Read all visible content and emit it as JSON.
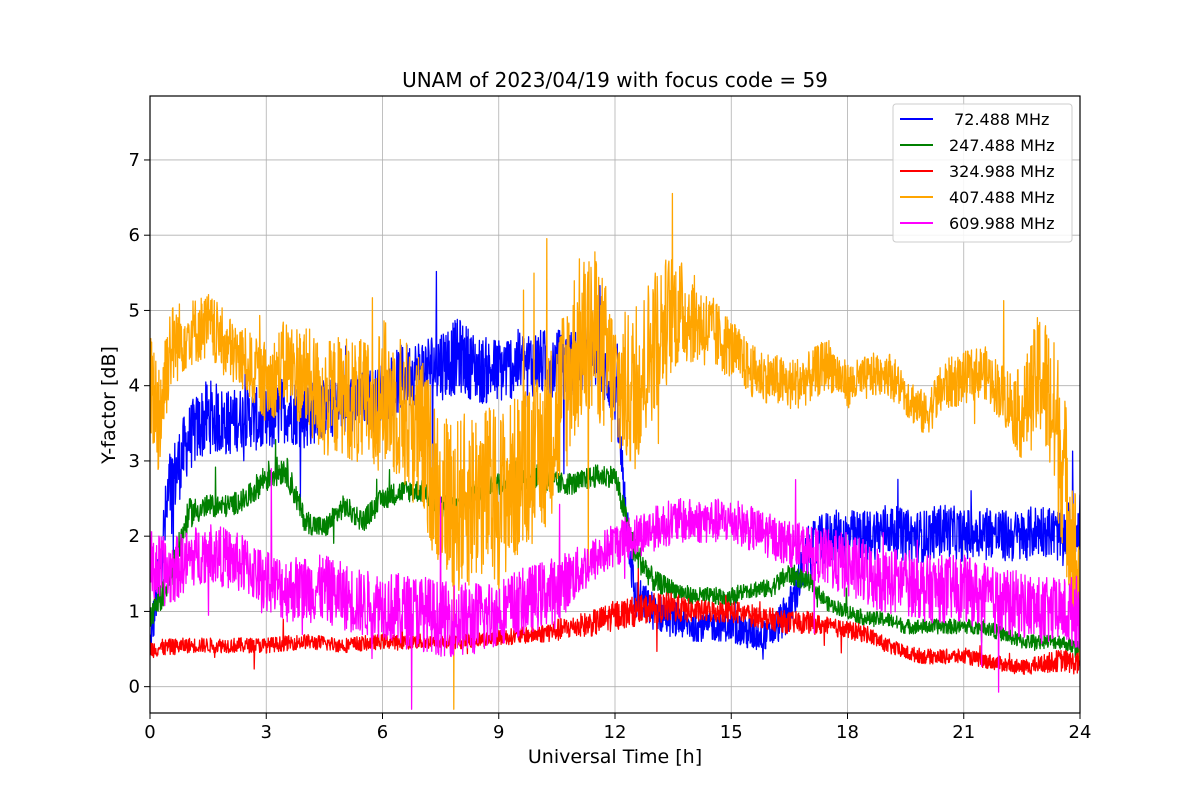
{
  "chart_data": {
    "type": "line",
    "title": "UNAM of 2023/04/19 with focus code = 59",
    "xlabel": "Universal Time [h]",
    "ylabel": "Y-factor [dB]",
    "xlim": [
      0,
      24
    ],
    "ylim": [
      -0.35,
      7.85
    ],
    "xticks": [
      0,
      3,
      6,
      9,
      12,
      15,
      18,
      21,
      24
    ],
    "yticks": [
      0,
      1,
      2,
      3,
      4,
      5,
      6,
      7
    ],
    "grid": true,
    "legend_position": "top-right",
    "series": [
      {
        "name": " 72.488 MHz",
        "color": "#0000ff",
        "x": [
          0,
          0.25,
          0.5,
          1,
          1.5,
          2,
          2.5,
          3,
          3.5,
          4,
          4.5,
          5,
          5.5,
          6,
          6.5,
          7,
          7.5,
          8,
          8.5,
          9,
          9.5,
          10,
          10.5,
          11,
          11.5,
          12,
          12.5,
          13,
          13.5,
          14,
          14.5,
          15,
          15.5,
          16,
          16.5,
          17,
          17.5,
          18,
          18.5,
          19,
          19.5,
          20,
          20.5,
          21,
          21.5,
          22,
          22.5,
          23,
          23.5,
          24
        ],
        "y": [
          0.5,
          1.6,
          2.6,
          3.3,
          3.6,
          3.5,
          3.6,
          3.5,
          3.7,
          3.6,
          3.7,
          3.7,
          3.8,
          3.9,
          4.1,
          4.2,
          4.3,
          4.4,
          4.2,
          4.2,
          4.3,
          4.3,
          4.3,
          4.3,
          4.4,
          3.9,
          1.2,
          1.0,
          0.9,
          0.8,
          0.8,
          0.8,
          0.7,
          0.7,
          1.0,
          1.8,
          2.0,
          2.0,
          2.0,
          2.1,
          2.0,
          2.0,
          2.1,
          2.0,
          2.1,
          2.0,
          2.0,
          2.1,
          2.0,
          2.2
        ],
        "amp": [
          0.25,
          0.45,
          0.55,
          0.45,
          0.5,
          0.45,
          0.4,
          0.45,
          0.45,
          0.45,
          0.4,
          0.4,
          0.4,
          0.4,
          0.45,
          0.45,
          0.5,
          0.5,
          0.45,
          0.45,
          0.45,
          0.45,
          0.45,
          0.45,
          0.45,
          0.4,
          0.3,
          0.25,
          0.25,
          0.2,
          0.2,
          0.2,
          0.25,
          0.2,
          0.3,
          0.35,
          0.35,
          0.35,
          0.35,
          0.35,
          0.35,
          0.35,
          0.35,
          0.35,
          0.35,
          0.35,
          0.35,
          0.35,
          0.35,
          0.4
        ]
      },
      {
        "name": "247.488 MHz",
        "color": "#008000",
        "x": [
          0,
          0.5,
          1,
          1.5,
          2,
          2.5,
          3,
          3.5,
          4,
          4.5,
          5,
          5.5,
          6,
          6.5,
          7,
          7.5,
          8,
          8.5,
          9,
          9.5,
          10,
          10.5,
          11,
          11.5,
          12,
          12.5,
          13,
          13.5,
          14,
          14.5,
          15,
          15.5,
          16,
          16.5,
          17,
          17.5,
          18,
          18.5,
          19,
          19.5,
          20,
          20.5,
          21,
          21.5,
          22,
          22.5,
          23,
          23.5,
          24
        ],
        "y": [
          0.9,
          1.4,
          2.3,
          2.4,
          2.4,
          2.5,
          2.8,
          2.9,
          2.2,
          2.1,
          2.4,
          2.2,
          2.5,
          2.6,
          2.6,
          2.4,
          2.4,
          2.6,
          2.7,
          2.7,
          2.8,
          2.7,
          2.7,
          2.8,
          2.8,
          1.8,
          1.4,
          1.3,
          1.2,
          1.2,
          1.2,
          1.3,
          1.3,
          1.5,
          1.4,
          1.1,
          1.0,
          0.9,
          0.9,
          0.8,
          0.8,
          0.8,
          0.8,
          0.8,
          0.7,
          0.6,
          0.6,
          0.6,
          0.5
        ],
        "amp": [
          0.15,
          0.2,
          0.2,
          0.15,
          0.15,
          0.15,
          0.2,
          0.2,
          0.15,
          0.15,
          0.15,
          0.15,
          0.15,
          0.15,
          0.15,
          0.15,
          0.15,
          0.15,
          0.15,
          0.15,
          0.15,
          0.15,
          0.15,
          0.15,
          0.15,
          0.2,
          0.15,
          0.12,
          0.12,
          0.12,
          0.12,
          0.12,
          0.12,
          0.15,
          0.12,
          0.1,
          0.1,
          0.1,
          0.1,
          0.1,
          0.1,
          0.1,
          0.1,
          0.1,
          0.1,
          0.1,
          0.1,
          0.1,
          0.1
        ]
      },
      {
        "name": "324.988 MHz",
        "color": "#ff0000",
        "x": [
          0,
          1,
          2,
          3,
          4,
          5,
          6,
          7,
          8,
          9,
          10,
          10.5,
          11,
          11.5,
          12,
          12.5,
          13,
          13.5,
          14,
          14.5,
          15,
          15.5,
          16,
          16.5,
          17,
          17.5,
          18,
          18.5,
          19,
          19.5,
          20,
          20.5,
          21,
          21.5,
          22,
          22.5,
          23,
          23.5,
          24
        ],
        "y": [
          0.5,
          0.55,
          0.55,
          0.55,
          0.6,
          0.55,
          0.6,
          0.6,
          0.6,
          0.65,
          0.7,
          0.75,
          0.8,
          0.85,
          0.95,
          1.0,
          1.05,
          1.05,
          1.0,
          1.0,
          1.0,
          0.95,
          0.9,
          0.85,
          0.85,
          0.8,
          0.75,
          0.7,
          0.55,
          0.45,
          0.4,
          0.4,
          0.4,
          0.35,
          0.3,
          0.25,
          0.3,
          0.35,
          0.3
        ],
        "amp": [
          0.12,
          0.1,
          0.1,
          0.1,
          0.1,
          0.1,
          0.1,
          0.1,
          0.1,
          0.1,
          0.12,
          0.15,
          0.15,
          0.18,
          0.2,
          0.2,
          0.2,
          0.2,
          0.15,
          0.15,
          0.15,
          0.15,
          0.15,
          0.15,
          0.15,
          0.12,
          0.12,
          0.12,
          0.1,
          0.1,
          0.1,
          0.1,
          0.1,
          0.1,
          0.1,
          0.1,
          0.12,
          0.15,
          0.15
        ]
      },
      {
        "name": "407.488 MHz",
        "color": "#ffa500",
        "x": [
          0,
          0.25,
          0.5,
          1,
          1.5,
          2,
          2.5,
          3,
          3.5,
          4,
          4.5,
          5,
          5.5,
          6,
          6.5,
          7,
          7.5,
          8,
          8.5,
          9,
          9.5,
          10,
          10.5,
          11,
          11.5,
          12,
          12.5,
          13,
          13.5,
          14,
          14.5,
          15,
          15.5,
          16,
          16.5,
          17,
          17.5,
          18,
          18.5,
          19,
          19.5,
          20,
          20.5,
          21,
          21.5,
          22,
          22.5,
          23,
          23.5,
          24
        ],
        "y": [
          4.0,
          3.6,
          4.5,
          4.7,
          4.8,
          4.5,
          4.3,
          4.0,
          4.3,
          4.1,
          3.8,
          3.9,
          3.7,
          3.9,
          3.7,
          3.3,
          2.6,
          2.4,
          2.6,
          2.5,
          2.8,
          3.0,
          3.6,
          4.5,
          4.7,
          4.0,
          3.9,
          4.6,
          5.0,
          4.9,
          4.7,
          4.5,
          4.2,
          4.1,
          4.0,
          4.1,
          4.3,
          4.0,
          4.1,
          4.2,
          3.9,
          3.6,
          4.0,
          4.1,
          4.2,
          3.9,
          3.6,
          4.2,
          3.2,
          1.2
        ],
        "amp": [
          0.7,
          0.9,
          0.6,
          0.45,
          0.45,
          0.45,
          0.45,
          0.5,
          0.6,
          0.7,
          0.8,
          0.8,
          0.9,
          1.0,
          1.0,
          1.1,
          1.1,
          1.2,
          1.2,
          1.2,
          1.1,
          1.1,
          1.2,
          1.2,
          1.1,
          1.0,
          1.1,
          1.0,
          0.8,
          0.6,
          0.5,
          0.4,
          0.35,
          0.35,
          0.35,
          0.35,
          0.35,
          0.3,
          0.3,
          0.3,
          0.3,
          0.3,
          0.35,
          0.35,
          0.35,
          0.4,
          0.6,
          0.9,
          1.2,
          1.0
        ]
      },
      {
        "name": "609.988 MHz",
        "color": "#ff00ff",
        "x": [
          0,
          0.5,
          1,
          1.5,
          2,
          2.5,
          3,
          3.5,
          4,
          4.5,
          5,
          5.5,
          6,
          6.5,
          7,
          7.5,
          8,
          8.5,
          9,
          9.5,
          10,
          10.5,
          11,
          11.5,
          12,
          12.5,
          13,
          13.5,
          14,
          14.5,
          15,
          15.5,
          16,
          16.5,
          17,
          17.5,
          18,
          18.5,
          19,
          19.5,
          20,
          20.5,
          21,
          21.5,
          22,
          22.5,
          23,
          23.5,
          24
        ],
        "y": [
          1.6,
          1.5,
          1.7,
          1.8,
          1.7,
          1.6,
          1.4,
          1.3,
          1.3,
          1.3,
          1.2,
          1.1,
          1.1,
          1.0,
          1.0,
          0.9,
          0.9,
          0.9,
          1.0,
          1.1,
          1.2,
          1.3,
          1.5,
          1.7,
          1.9,
          2.0,
          2.1,
          2.2,
          2.2,
          2.2,
          2.2,
          2.1,
          2.0,
          1.9,
          1.8,
          1.7,
          1.6,
          1.5,
          1.4,
          1.4,
          1.3,
          1.3,
          1.3,
          1.2,
          1.1,
          1.1,
          1.0,
          1.0,
          1.0
        ],
        "amp": [
          0.5,
          0.45,
          0.4,
          0.4,
          0.4,
          0.4,
          0.4,
          0.45,
          0.45,
          0.45,
          0.45,
          0.45,
          0.45,
          0.5,
          0.5,
          0.5,
          0.5,
          0.5,
          0.45,
          0.45,
          0.45,
          0.45,
          0.35,
          0.3,
          0.3,
          0.3,
          0.3,
          0.3,
          0.3,
          0.3,
          0.3,
          0.3,
          0.3,
          0.3,
          0.35,
          0.4,
          0.45,
          0.45,
          0.45,
          0.45,
          0.45,
          0.45,
          0.45,
          0.45,
          0.45,
          0.45,
          0.45,
          0.45,
          0.5
        ]
      }
    ]
  }
}
